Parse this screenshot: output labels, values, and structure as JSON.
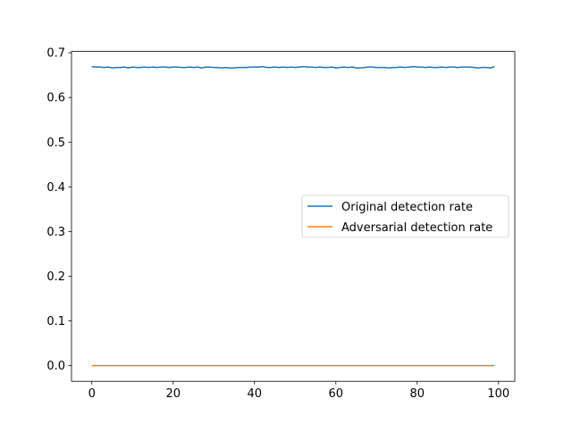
{
  "chart_data": {
    "type": "line",
    "title": "",
    "xlabel": "",
    "ylabel": "",
    "xlim": [
      -5,
      104
    ],
    "ylim": [
      -0.035,
      0.703
    ],
    "x_ticks": [
      0,
      20,
      40,
      60,
      80,
      100
    ],
    "y_ticks": [
      0.0,
      0.1,
      0.2,
      0.3,
      0.4,
      0.5,
      0.6,
      0.7
    ],
    "x_tick_labels": [
      "0",
      "20",
      "40",
      "60",
      "80",
      "100"
    ],
    "y_tick_labels": [
      "0.0",
      "0.1",
      "0.2",
      "0.3",
      "0.4",
      "0.5",
      "0.6",
      "0.7"
    ],
    "grid": false,
    "legend_position": "center-right",
    "x": [
      0,
      1,
      2,
      3,
      4,
      5,
      6,
      7,
      8,
      9,
      10,
      11,
      12,
      13,
      14,
      15,
      16,
      17,
      18,
      19,
      20,
      21,
      22,
      23,
      24,
      25,
      26,
      27,
      28,
      29,
      30,
      31,
      32,
      33,
      34,
      35,
      36,
      37,
      38,
      39,
      40,
      41,
      42,
      43,
      44,
      45,
      46,
      47,
      48,
      49,
      50,
      51,
      52,
      53,
      54,
      55,
      56,
      57,
      58,
      59,
      60,
      61,
      62,
      63,
      64,
      65,
      66,
      67,
      68,
      69,
      70,
      71,
      72,
      73,
      74,
      75,
      76,
      77,
      78,
      79,
      80,
      81,
      82,
      83,
      84,
      85,
      86,
      87,
      88,
      89,
      90,
      91,
      92,
      93,
      94,
      95,
      96,
      97,
      98,
      99
    ],
    "series": [
      {
        "name": "Original detection rate",
        "color": "#1f77b4",
        "values": [
          0.669,
          0.668,
          0.668,
          0.667,
          0.668,
          0.666,
          0.667,
          0.667,
          0.668,
          0.666,
          0.668,
          0.667,
          0.667,
          0.668,
          0.667,
          0.668,
          0.667,
          0.668,
          0.668,
          0.667,
          0.668,
          0.668,
          0.667,
          0.667,
          0.668,
          0.667,
          0.668,
          0.666,
          0.668,
          0.668,
          0.667,
          0.667,
          0.666,
          0.667,
          0.666,
          0.666,
          0.667,
          0.667,
          0.667,
          0.668,
          0.668,
          0.668,
          0.669,
          0.667,
          0.667,
          0.668,
          0.667,
          0.668,
          0.667,
          0.668,
          0.667,
          0.668,
          0.669,
          0.668,
          0.668,
          0.667,
          0.668,
          0.667,
          0.667,
          0.668,
          0.666,
          0.667,
          0.668,
          0.667,
          0.668,
          0.666,
          0.666,
          0.667,
          0.668,
          0.668,
          0.667,
          0.667,
          0.667,
          0.666,
          0.667,
          0.667,
          0.668,
          0.667,
          0.668,
          0.669,
          0.668,
          0.668,
          0.667,
          0.668,
          0.667,
          0.667,
          0.668,
          0.667,
          0.668,
          0.668,
          0.667,
          0.668,
          0.668,
          0.668,
          0.667,
          0.666,
          0.667,
          0.667,
          0.666,
          0.669
        ]
      },
      {
        "name": "Adversarial detection rate",
        "color": "#ff7f0e",
        "values": [
          0,
          0,
          0,
          0,
          0,
          0,
          0,
          0,
          0,
          0,
          0,
          0,
          0,
          0,
          0,
          0,
          0,
          0,
          0,
          0,
          0,
          0,
          0,
          0,
          0,
          0,
          0,
          0,
          0,
          0,
          0,
          0,
          0,
          0,
          0,
          0,
          0,
          0,
          0,
          0,
          0,
          0,
          0,
          0,
          0,
          0,
          0,
          0,
          0,
          0,
          0,
          0,
          0,
          0,
          0,
          0,
          0,
          0,
          0,
          0,
          0,
          0,
          0,
          0,
          0,
          0,
          0,
          0,
          0,
          0,
          0,
          0,
          0,
          0,
          0,
          0,
          0,
          0,
          0,
          0,
          0,
          0,
          0,
          0,
          0,
          0,
          0,
          0,
          0,
          0,
          0,
          0,
          0,
          0,
          0,
          0,
          0,
          0,
          0,
          0
        ]
      }
    ]
  }
}
